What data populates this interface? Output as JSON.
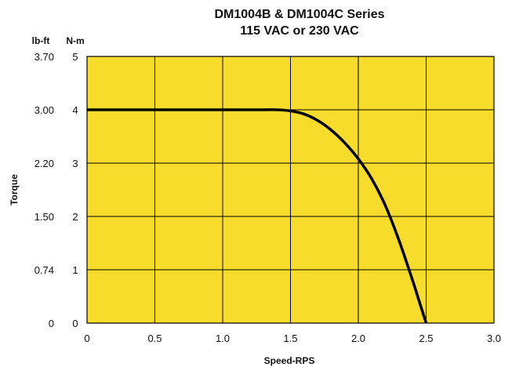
{
  "chart_data": {
    "type": "line",
    "title": "DM1004B & DM1004C Series",
    "subtitle": "115 VAC or 230 VAC",
    "xlabel": "Speed-RPS",
    "ylabel": "Torque",
    "xlim": [
      0,
      3.0
    ],
    "ylim": [
      0,
      5
    ],
    "x_ticks": [
      "0",
      "0.5",
      "1.0",
      "1.5",
      "2.0",
      "2.5",
      "3.0"
    ],
    "x_tick_values": [
      0,
      0.5,
      1.0,
      1.5,
      2.0,
      2.5,
      3.0
    ],
    "y_ticks_nm": [
      "0",
      "1",
      "2",
      "3",
      "4",
      "5"
    ],
    "y_tick_values": [
      0,
      1,
      2,
      3,
      4,
      5
    ],
    "y_ticks_lbft": [
      "0",
      "0.74",
      "1.50",
      "2.20",
      "3.00",
      "3.70"
    ],
    "y_unit_left": "lb-ft",
    "y_unit_right": "N-m",
    "grid": true,
    "plot_background": "#f7dc2c",
    "line_color": "#000000",
    "grid_color": "#000000",
    "series": [
      {
        "x": [
          0,
          0.5,
          1.0,
          1.3,
          1.4,
          1.5,
          1.6,
          1.7,
          1.8,
          1.9,
          2.0,
          2.1,
          2.2,
          2.3,
          2.4,
          2.45,
          2.5
        ],
        "values": [
          4.0,
          4.0,
          4.0,
          4.0,
          4.0,
          3.98,
          3.92,
          3.8,
          3.62,
          3.38,
          3.08,
          2.7,
          2.2,
          1.55,
          0.8,
          0.4,
          0.0
        ]
      }
    ]
  }
}
